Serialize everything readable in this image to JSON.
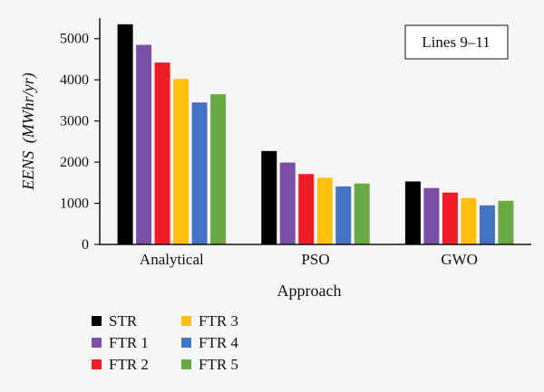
{
  "chart_data": {
    "type": "bar",
    "title": "",
    "xlabel": "Approach",
    "ylabel": "EENS (MWhr/yr)",
    "ylabel_italic": "EENS",
    "ylabel_unit": "(MWhr/yr)",
    "ylim": [
      0,
      5500
    ],
    "yticks": [
      0,
      1000,
      2000,
      3000,
      4000,
      5000
    ],
    "ytick_labels": [
      "0",
      "1000",
      "2000",
      "3000",
      "4000",
      "5000"
    ],
    "categories": [
      "Analytical",
      "PSO",
      "GWO"
    ],
    "series": [
      {
        "name": "STR",
        "color": "#000000",
        "values": [
          5350,
          2270,
          1530
        ]
      },
      {
        "name": "FTR 1",
        "color": "#7a4fa6",
        "values": [
          4850,
          1990,
          1370
        ]
      },
      {
        "name": "FTR 2",
        "color": "#ee1c24",
        "values": [
          4420,
          1710,
          1260
        ]
      },
      {
        "name": "FTR 3",
        "color": "#ffbf0f",
        "values": [
          4020,
          1620,
          1130
        ]
      },
      {
        "name": "FTR 4",
        "color": "#4473c4",
        "values": [
          3450,
          1410,
          950
        ]
      },
      {
        "name": "FTR 5",
        "color": "#6aaa45",
        "values": [
          3650,
          1480,
          1060
        ]
      }
    ],
    "annotation": "Lines 9–11",
    "grid": false,
    "legend_position": "bottom-left"
  }
}
